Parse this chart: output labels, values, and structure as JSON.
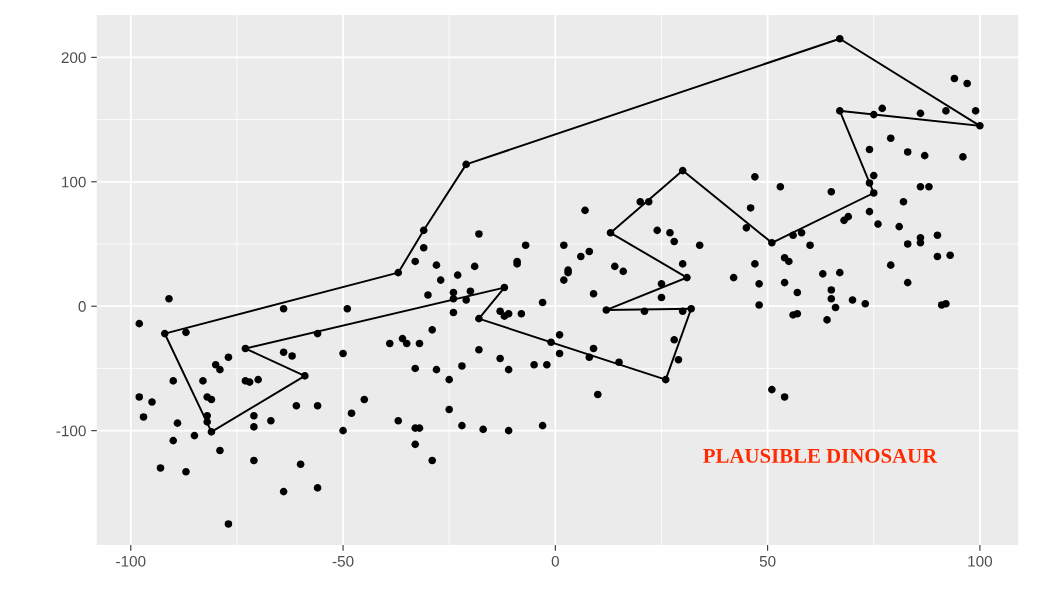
{
  "chart_data": {
    "type": "scatter",
    "annotations": [
      "PLAUSIBLE DINOSAUR"
    ],
    "xlim": [
      -108,
      109
    ],
    "ylim": [
      -192,
      234
    ],
    "xticks": [
      -100,
      -50,
      0,
      50,
      100
    ],
    "yticks": [
      -100,
      0,
      100,
      200
    ],
    "grid": true,
    "marker": "circle",
    "series": [
      {
        "type": "scatter",
        "color": "#000000",
        "x": [
          -91,
          -98,
          -92,
          -87,
          -64,
          -49,
          -56,
          -73,
          -64,
          -62,
          -50,
          -39,
          -36,
          -35,
          -77,
          -80,
          -79,
          -90,
          -83,
          -73,
          -72,
          -70,
          -59,
          -98,
          -95,
          -82,
          -81,
          -97,
          -89,
          -82,
          -82,
          -81,
          -71,
          -71,
          -67,
          -61,
          -56,
          -45,
          -48,
          -50,
          -37,
          -90,
          -85,
          -79,
          -71,
          -60,
          -93,
          -87,
          -64,
          -56,
          -77,
          -37,
          -31,
          -21,
          -31,
          -33,
          -28,
          -27,
          -23,
          -19,
          -18,
          -9,
          -9,
          -7,
          2,
          7,
          6,
          8,
          3,
          3,
          2,
          13,
          20,
          22,
          30,
          24,
          27,
          28,
          34,
          14,
          16,
          30,
          31,
          25,
          -30,
          -24,
          -24,
          -20,
          -21,
          -12,
          -24,
          -18,
          -13,
          -11,
          -12,
          -8,
          -3,
          9,
          25,
          12,
          21,
          32,
          30,
          28,
          29,
          26,
          -29,
          -32,
          -18,
          -13,
          -11,
          -5,
          -2,
          -1,
          1,
          1,
          9,
          8,
          15,
          -33,
          -28,
          -22,
          -25,
          10,
          -33,
          -32,
          -25,
          -22,
          -17,
          -11,
          -3,
          -33,
          -29,
          67,
          94,
          97,
          67,
          77,
          75,
          86,
          92,
          99,
          100,
          79,
          74,
          83,
          87,
          96,
          47,
          53,
          65,
          75,
          74,
          75,
          86,
          88,
          82,
          46,
          45,
          51,
          56,
          58,
          60,
          68,
          69,
          74,
          76,
          81,
          86,
          86,
          83,
          90,
          90,
          93,
          47,
          54,
          55,
          63,
          67,
          79,
          42,
          48,
          54,
          83,
          57,
          65,
          65,
          66,
          70,
          73,
          48,
          56,
          57,
          64,
          91,
          92,
          51,
          54
        ],
        "values": [
          6,
          -14,
          -22,
          -21,
          -2,
          -2,
          -22,
          -34,
          -37,
          -40,
          -38,
          -30,
          -26,
          -30,
          -41,
          -47,
          -51,
          -60,
          -60,
          -60,
          -61,
          -59,
          -56,
          -73,
          -77,
          -73,
          -75,
          -89,
          -94,
          -88,
          -93,
          -101,
          -88,
          -97,
          -92,
          -80,
          -80,
          -75,
          -86,
          -100,
          -92,
          -108,
          -104,
          -116,
          -124,
          -127,
          -130,
          -133,
          -149,
          -146,
          -175,
          27,
          61,
          114,
          47,
          36,
          33,
          21,
          25,
          32,
          58,
          36,
          34,
          49,
          49,
          77,
          40,
          44,
          27,
          29,
          21,
          59,
          84,
          84,
          109,
          61,
          59,
          52,
          49,
          32,
          28,
          34,
          23,
          18,
          9,
          11,
          6,
          12,
          5,
          15,
          -5,
          -10,
          -4,
          -6,
          -8,
          -6,
          3,
          10,
          7,
          -3,
          -4,
          -2,
          -4,
          -27,
          -43,
          -59,
          -19,
          -30,
          -35,
          -42,
          -51,
          -47,
          -47,
          -29,
          -23,
          -38,
          -34,
          -41,
          -45,
          -50,
          -51,
          -48,
          -59,
          -71,
          -98,
          -98,
          -83,
          -96,
          -99,
          -100,
          -96,
          -111,
          -124,
          215,
          183,
          179,
          157,
          159,
          154,
          155,
          157,
          157,
          145,
          135,
          126,
          124,
          121,
          120,
          104,
          96,
          92,
          105,
          99,
          91,
          96,
          96,
          84,
          79,
          63,
          51,
          57,
          59,
          49,
          69,
          72,
          76,
          66,
          64,
          55,
          51,
          50,
          57,
          40,
          41,
          34,
          39,
          36,
          26,
          27,
          33,
          23,
          18,
          19,
          19,
          11,
          13,
          6,
          -1,
          5,
          2,
          1,
          -7,
          -6,
          -11,
          1,
          2,
          -67,
          -73
        ]
      },
      {
        "type": "line",
        "color": "#000000",
        "marker": "none",
        "x": [
          -92,
          -37,
          -31,
          -21,
          67,
          100
        ],
        "values": [
          -22,
          27,
          61,
          114,
          215,
          145
        ]
      },
      {
        "type": "line",
        "color": "#000000",
        "marker": "none",
        "x": [
          100,
          67
        ],
        "values": [
          145,
          157
        ]
      },
      {
        "type": "line",
        "color": "#000000",
        "marker": "none",
        "x": [
          67,
          75
        ],
        "values": [
          157,
          91
        ]
      },
      {
        "type": "line",
        "color": "#000000",
        "marker": "none",
        "x": [
          75,
          51,
          30,
          13
        ],
        "values": [
          91,
          51,
          109,
          59
        ]
      },
      {
        "type": "line",
        "color": "#000000",
        "marker": "none",
        "x": [
          13,
          31
        ],
        "values": [
          59,
          23
        ]
      },
      {
        "type": "line",
        "color": "#000000",
        "marker": "none",
        "x": [
          31,
          12
        ],
        "values": [
          23,
          -3
        ]
      },
      {
        "type": "line",
        "color": "#000000",
        "marker": "none",
        "x": [
          12,
          32
        ],
        "values": [
          -3,
          -2
        ]
      },
      {
        "type": "line",
        "color": "#000000",
        "marker": "none",
        "x": [
          32,
          26,
          -18
        ],
        "values": [
          -2,
          -59,
          -10
        ]
      },
      {
        "type": "line",
        "color": "#000000",
        "marker": "none",
        "x": [
          -18,
          -12
        ],
        "values": [
          -10,
          15
        ]
      },
      {
        "type": "line",
        "color": "#000000",
        "marker": "none",
        "x": [
          -12,
          -73
        ],
        "values": [
          15,
          -34
        ]
      },
      {
        "type": "line",
        "color": "#000000",
        "marker": "none",
        "x": [
          -73,
          -59
        ],
        "values": [
          -34,
          -56
        ]
      },
      {
        "type": "line",
        "color": "#000000",
        "marker": "none",
        "x": [
          -59,
          -81,
          -92
        ],
        "values": [
          -56,
          -101,
          -22
        ]
      }
    ]
  }
}
